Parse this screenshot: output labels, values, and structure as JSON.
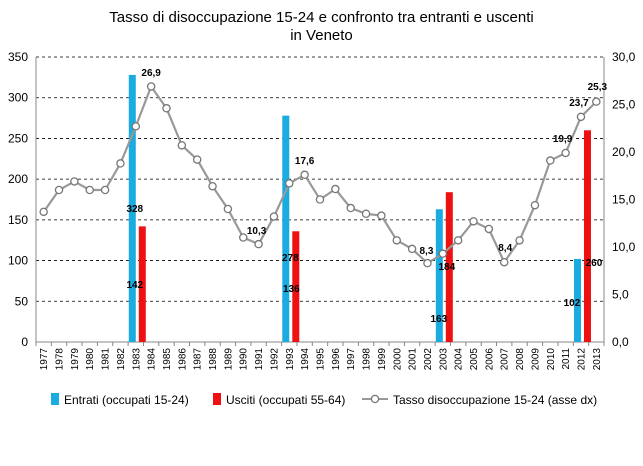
{
  "chart_data": {
    "type": "bar",
    "title": "Tasso di disoccupazione 15-24 e confronto tra entranti e uscenti",
    "subtitle": "in Veneto",
    "categories": [
      "1977",
      "1978",
      "1979",
      "1980",
      "1981",
      "1982",
      "1983",
      "1984",
      "1985",
      "1986",
      "1987",
      "1988",
      "1989",
      "1990",
      "1991",
      "1992",
      "1993",
      "1994",
      "1995",
      "1996",
      "1997",
      "1998",
      "1999",
      "2000",
      "2001",
      "2002",
      "2003",
      "2004",
      "2005",
      "2006",
      "2007",
      "2008",
      "2009",
      "2010",
      "2011",
      "2012",
      "2013"
    ],
    "y_left": {
      "ylim": [
        0,
        350
      ],
      "ticks": [
        "0",
        "50",
        "100",
        "150",
        "200",
        "250",
        "300",
        "350"
      ]
    },
    "y_right": {
      "ylim": [
        0,
        30
      ],
      "ticks": [
        "0,0",
        "5,0",
        "10,0",
        "15,0",
        "20,0",
        "25,0",
        "30,0"
      ]
    },
    "grid": true,
    "legend_position": "bottom",
    "series": [
      {
        "name": "Entrati (occupati 15-24)",
        "type": "bar",
        "axis": "left",
        "color": "#1AABE0",
        "values": [
          null,
          null,
          null,
          null,
          null,
          null,
          328,
          null,
          null,
          null,
          null,
          null,
          null,
          null,
          null,
          null,
          278,
          null,
          null,
          null,
          null,
          null,
          null,
          null,
          null,
          null,
          163,
          null,
          null,
          null,
          null,
          null,
          null,
          null,
          null,
          102,
          null
        ],
        "labels": {
          "1983": "328",
          "1993": "278",
          "2003": "163",
          "2012": "102"
        }
      },
      {
        "name": "Usciti (occupati 55-64)",
        "type": "bar",
        "axis": "left",
        "color": "#EE1111",
        "values": [
          null,
          null,
          null,
          null,
          null,
          null,
          142,
          null,
          null,
          null,
          null,
          null,
          null,
          null,
          null,
          null,
          136,
          null,
          null,
          null,
          null,
          null,
          null,
          null,
          null,
          null,
          184,
          null,
          null,
          null,
          null,
          null,
          null,
          null,
          null,
          260,
          null
        ],
        "labels": {
          "1983": "142",
          "1993": "136",
          "2003": "184",
          "2012": "260"
        }
      },
      {
        "name": "Tasso disoccupazione 15-24 (asse dx)",
        "type": "line",
        "axis": "right",
        "color": "#999999",
        "values": [
          13.7,
          16.0,
          16.9,
          16.0,
          16.0,
          18.8,
          22.7,
          26.9,
          24.6,
          20.7,
          19.2,
          16.4,
          14.0,
          11.0,
          10.3,
          13.2,
          16.7,
          17.6,
          15.0,
          16.1,
          14.1,
          13.5,
          13.3,
          10.7,
          9.8,
          8.3,
          9.3,
          10.7,
          12.7,
          11.9,
          8.4,
          10.7,
          14.4,
          19.1,
          19.9,
          23.7,
          25.3
        ],
        "labels": {
          "1984": "26,9",
          "1991": "10,3",
          "1994": "17,6",
          "2002": "8,3",
          "2007": "8,4",
          "2011": "19,9",
          "2012": "23,7",
          "2013": "25,3"
        }
      }
    ]
  }
}
